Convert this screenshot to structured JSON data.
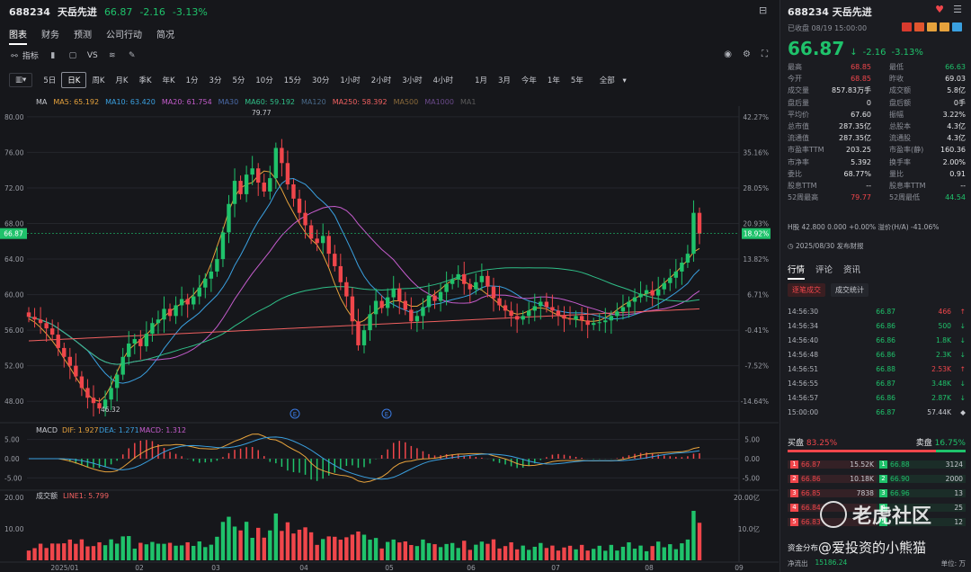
{
  "header": {
    "symbol": "688234",
    "name": "天岳先进",
    "price": "66.87",
    "change": "-2.16",
    "change_pct": "-3.13%"
  },
  "tabs": [
    "图表",
    "财务",
    "预测",
    "公司行动",
    "简况"
  ],
  "tools": {
    "indicator": "指标",
    "vs": "VS"
  },
  "periods": [
    "5日",
    "日K",
    "周K",
    "月K",
    "季K",
    "年K",
    "1分",
    "3分",
    "5分",
    "10分",
    "15分",
    "30分",
    "1小时",
    "2小时",
    "3小时",
    "4小时",
    "1月",
    "3月",
    "今年",
    "1年",
    "5年",
    "全部"
  ],
  "ma_legend": [
    {
      "label": "MA",
      "color": "#c8cad0"
    },
    {
      "label": "MA5: 65.192",
      "color": "#e6a23c"
    },
    {
      "label": "MA10: 63.420",
      "color": "#3aa0e0"
    },
    {
      "label": "MA20: 61.754",
      "color": "#c45ccc"
    },
    {
      "label": "MA30",
      "color": "#4a6aa8"
    },
    {
      "label": "MA60: 59.192",
      "color": "#2fbf88"
    },
    {
      "label": "MA120",
      "color": "#4a6a8a"
    },
    {
      "label": "MA250: 58.392",
      "color": "#f06060"
    },
    {
      "label": "MA500",
      "color": "#8a6a3a"
    },
    {
      "label": "MA1000",
      "color": "#6a4a8a"
    },
    {
      "label": "MA1",
      "color": "#5a5a5a"
    }
  ],
  "chart_data": [
    {
      "type": "candlestick",
      "y_ticks": [
        "80.00",
        "76.00",
        "72.00",
        "68.00",
        "64.00",
        "60.00",
        "56.00",
        "52.00",
        "48.00"
      ],
      "pct_ticks": [
        "42.27%",
        "35.16%",
        "28.05%",
        "20.93%",
        "13.82%",
        "6.71%",
        "-0.41%",
        "-7.52%",
        "-14.64%"
      ],
      "ylim": [
        46,
        81
      ],
      "x_ticks": [
        "2025/01",
        "02",
        "03",
        "04",
        "05",
        "06",
        "07",
        "08",
        "09"
      ],
      "current_price": "66.87",
      "current_pct": "18.92%",
      "high_label": "79.77",
      "low_label": "46.32",
      "event_markers": [
        "E",
        "E"
      ],
      "close_series": [
        57.5,
        57.2,
        56.8,
        56.2,
        55.5,
        54.0,
        53.0,
        52.0,
        50.8,
        49.5,
        48.4,
        47.8,
        47.2,
        48.2,
        49.5,
        51.0,
        53.0,
        54.5,
        55.0,
        54.2,
        55.6,
        56.8,
        57.2,
        58.4,
        57.6,
        58.8,
        59.5,
        58.9,
        59.8,
        60.8,
        61.8,
        62.6,
        64.0,
        67.0,
        70.2,
        72.8,
        71.3,
        73.5,
        74.2,
        72.6,
        71.6,
        73.1,
        76.5,
        74.8,
        72.4,
        70.8,
        69.2,
        67.8,
        66.3,
        65.8,
        66.6,
        64.6,
        63.2,
        61.4,
        59.8,
        57.0,
        54.3,
        56.0,
        57.8,
        59.3,
        58.5,
        59.7,
        60.7,
        59.3,
        58.3,
        57.0,
        57.6,
        58.6,
        59.9,
        59.3,
        60.3,
        61.2,
        61.7,
        62.3,
        61.2,
        60.6,
        61.4,
        62.1,
        60.9,
        59.6,
        58.8,
        58.2,
        57.6,
        57.2,
        57.6,
        58.2,
        58.7,
        59.2,
        58.6,
        58.2,
        57.7,
        57.3,
        57.2,
        57.6,
        57.1,
        56.6,
        56.8,
        56.9,
        57.1,
        57.6,
        58.1,
        58.6,
        59.2,
        59.7,
        60.1,
        60.5,
        59.9,
        60.6,
        61.3,
        61.9,
        62.6,
        63.6,
        64.6,
        69.2,
        66.87
      ],
      "ma_series": {
        "MA5": [
          57.3,
          56.9,
          56.3,
          55.6,
          54.8,
          53.9,
          52.8,
          51.8,
          50.7,
          49.7,
          48.8,
          48.2,
          48.0,
          48.6,
          49.8,
          51.3,
          52.7,
          53.8,
          54.4,
          54.9,
          55.5,
          56.2,
          56.9,
          57.5,
          58.1,
          58.6,
          59.0,
          59.4,
          60.0,
          60.8,
          61.9,
          63.5,
          65.4,
          67.3,
          69.4,
          71.0,
          72.0,
          72.4,
          72.6,
          73.4,
          73.9,
          73.8,
          73.0,
          71.8,
          70.4,
          69.2,
          68.0,
          67.0,
          66.2,
          65.6,
          64.5,
          63.0,
          61.2,
          59.6,
          58.4,
          57.4,
          56.8,
          57.1,
          57.7,
          58.2,
          58.7,
          59.0,
          59.3,
          59.3,
          59.0,
          58.7,
          58.7,
          59.1,
          59.6,
          60.1,
          60.6,
          61.2,
          61.6,
          61.8,
          61.5,
          61.1,
          60.8,
          60.5,
          60.0,
          59.5,
          58.9,
          58.4,
          58.0,
          57.8,
          57.9,
          58.2,
          58.5,
          58.5,
          58.4,
          58.0,
          57.7,
          57.4,
          57.3,
          57.2,
          57.1,
          57.0,
          57.0,
          57.1,
          57.4,
          57.8,
          58.3,
          58.8,
          59.2,
          59.6,
          59.9,
          60.1,
          60.3,
          60.7,
          61.3,
          61.9,
          62.5,
          63.2,
          63.9,
          64.8,
          65.19
        ]
      }
    },
    {
      "type": "macd",
      "title": "MACD",
      "dif": "DIF: 1.927",
      "dea": "DEA: 1.271",
      "macd": "MACD: 1.312",
      "y_ticks": [
        "5.00",
        "0.00",
        "-5.00"
      ],
      "ylim": [
        -7,
        7
      ]
    },
    {
      "type": "volume",
      "title": "成交额",
      "line": "LINE1: 5.799",
      "y_ticks": [
        "20.00",
        "10.00"
      ],
      "right_ticks": [
        "20.00亿",
        "10.0亿"
      ],
      "ylim": [
        0,
        20
      ]
    }
  ],
  "right": {
    "title": "688234 天岳先进",
    "status": "已收盘 08/19 15:00:00",
    "price": "66.87",
    "arrow": "↓",
    "change": "-2.16",
    "change_pct": "-3.13%",
    "stats": [
      [
        "最高",
        "68.85",
        "最低",
        "66.63"
      ],
      [
        "今开",
        "68.85",
        "昨收",
        "69.03"
      ],
      [
        "成交量",
        "857.83万手",
        "成交额",
        "5.8亿"
      ],
      [
        "盘后量",
        "0",
        "盘后额",
        "0手"
      ],
      [
        "平均价",
        "67.60",
        "振幅",
        "3.22%"
      ],
      [
        "总市值",
        "287.35亿",
        "总股本",
        "4.3亿"
      ],
      [
        "流通值",
        "287.35亿",
        "流通股",
        "4.3亿"
      ],
      [
        "市盈率TTM",
        "203.25",
        "市盈率(静)",
        "160.36"
      ],
      [
        "市净率",
        "5.392",
        "换手率",
        "2.00%"
      ],
      [
        "委比",
        "68.77%",
        "量比",
        "0.91"
      ],
      [
        "股息TTM",
        "--",
        "股息率TTM",
        "--"
      ],
      [
        "52周最高",
        "79.77",
        "52周最低",
        "44.54"
      ]
    ],
    "hshare": "H股  42.800  0.000  +0.00%  溢价(H/A)  -41.06%",
    "report": "2025/08/30 发布财报",
    "tabs": [
      "行情",
      "评论",
      "资讯"
    ],
    "subtabs": [
      "逐笔成交",
      "成交统计"
    ],
    "trades": [
      [
        "14:56:30",
        "66.87",
        "466",
        "up"
      ],
      [
        "14:56:34",
        "66.86",
        "500",
        "down"
      ],
      [
        "14:56:40",
        "66.86",
        "1.8K",
        "down"
      ],
      [
        "14:56:48",
        "66.86",
        "2.3K",
        "down"
      ],
      [
        "14:56:51",
        "66.88",
        "2.53K",
        "up"
      ],
      [
        "14:56:55",
        "66.87",
        "3.48K",
        "down"
      ],
      [
        "14:56:57",
        "66.86",
        "2.87K",
        "down"
      ],
      [
        "15:00:00",
        "66.87",
        "57.44K",
        "neutral"
      ]
    ],
    "buy_label": "买盘",
    "buy_pct": "83.25%",
    "sell_label": "卖盘",
    "sell_pct": "16.75%",
    "book": [
      [
        "1",
        "66.87",
        "15.52K",
        "1",
        "66.88",
        "3124"
      ],
      [
        "2",
        "66.86",
        "10.18K",
        "2",
        "66.90",
        "2000"
      ],
      [
        "3",
        "66.85",
        "7838",
        "3",
        "66.96",
        "13"
      ],
      [
        "4",
        "66.84",
        "",
        "4",
        "",
        "25"
      ],
      [
        "5",
        "66.83",
        "",
        "5",
        "",
        "12"
      ]
    ],
    "fund_title": "资金分布",
    "fund_in": "净流出",
    "fund_val": "15186.24",
    "fund_unit": "单位: 万"
  },
  "watermark": {
    "brand": "老虎社区",
    "user": "@爱投资的小熊猫"
  }
}
